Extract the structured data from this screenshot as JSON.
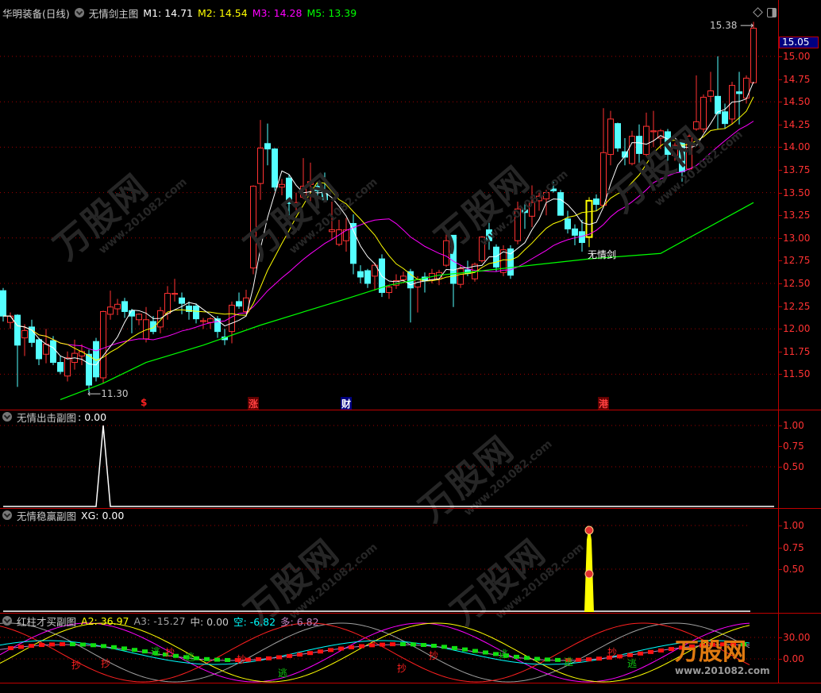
{
  "header": {
    "stock_name": "华明装备(日线)",
    "indicator": "无情剑主图",
    "ma": [
      {
        "label": "M1: 14.71",
        "color": "#ffffff"
      },
      {
        "label": "M2: 14.54",
        "color": "#ffff00"
      },
      {
        "label": "M3: 14.28",
        "color": "#ff00ff"
      },
      {
        "label": "M5: 13.39",
        "color": "#00ff00"
      }
    ]
  },
  "main_axis": [
    "15.00",
    "14.75",
    "14.50",
    "14.25",
    "14.00",
    "13.75",
    "13.50",
    "13.25",
    "13.00",
    "12.75",
    "12.50",
    "12.25",
    "12.00",
    "11.75",
    "11.50"
  ],
  "current_price_box": "15.05",
  "annotations": {
    "high_label": "15.38",
    "low_label": "11.30",
    "signal_label": "无情剑"
  },
  "event_markers": [
    {
      "text": "$",
      "candle": 20,
      "color": "#ff2020",
      "boxed": false
    },
    {
      "text": "涨",
      "candle": 35,
      "color": "#ff4040",
      "boxed": true,
      "bg": "#600000"
    },
    {
      "text": "财",
      "candle": 48,
      "color": "#ffffff",
      "boxed": true,
      "bg": "#000080"
    },
    {
      "text": "港",
      "candle": 84,
      "color": "#ff4040",
      "boxed": true,
      "bg": "#600000"
    }
  ],
  "panel1": {
    "title": "无情出击副图",
    "value": ": 0.00",
    "axis": [
      "1.00",
      "0.75",
      "0.50"
    ]
  },
  "panel2": {
    "title": "无情稳赢副图",
    "value": "XG: 0.00",
    "axis": [
      "1.00",
      "0.75",
      "0.50"
    ]
  },
  "panel3": {
    "title": "红柱才买副图",
    "values": [
      {
        "label": "A2: 36.97",
        "color": "#ffff00"
      },
      {
        "label": "A3: -15.27",
        "color": "#a0a0a0"
      },
      {
        "label": "中: 0.00",
        "color": "#c8c8c8"
      },
      {
        "label": "空: -6.82",
        "color": "#00ffff"
      },
      {
        "label": "多: 6.82",
        "color": "#c080c0"
      }
    ],
    "axis": [
      "30.00",
      "0.00"
    ],
    "buy_text": "抄",
    "sell_text": "逃"
  },
  "watermark": {
    "brand": "万股网",
    "url": "www.201082.com"
  },
  "colors": {
    "up": "#ff3232",
    "down": "#54ffff",
    "grid": "#a00000",
    "axis": "#ff3232",
    "price_box": "#000080",
    "signal": "#ffff00"
  },
  "chart_data": {
    "type": "candlestick",
    "ohlc": [
      [
        12.42,
        12.45,
        12.08,
        12.14
      ],
      [
        12.07,
        12.18,
        12.0,
        12.14
      ],
      [
        12.15,
        12.16,
        11.36,
        11.82
      ],
      [
        11.9,
        12.05,
        11.7,
        11.98
      ],
      [
        12.02,
        12.1,
        11.8,
        11.85
      ],
      [
        11.88,
        11.9,
        11.6,
        11.67
      ],
      [
        11.72,
        12.0,
        11.62,
        11.83
      ],
      [
        11.87,
        11.92,
        11.6,
        11.63
      ],
      [
        11.63,
        11.7,
        11.5,
        11.53
      ],
      [
        11.48,
        11.75,
        11.42,
        11.68
      ],
      [
        11.63,
        11.88,
        11.55,
        11.73
      ],
      [
        11.7,
        11.83,
        11.6,
        11.75
      ],
      [
        11.72,
        11.77,
        11.3,
        11.38
      ],
      [
        11.86,
        11.9,
        11.42,
        11.47
      ],
      [
        11.46,
        12.2,
        11.4,
        12.19
      ],
      [
        12.16,
        12.42,
        12.1,
        12.24
      ],
      [
        12.22,
        12.33,
        12.15,
        12.27
      ],
      [
        12.3,
        12.34,
        12.12,
        12.19
      ],
      [
        12.2,
        12.22,
        11.95,
        12.14
      ],
      [
        12.1,
        12.17,
        12.04,
        12.16
      ],
      [
        11.89,
        12.24,
        11.85,
        12.1
      ],
      [
        12.08,
        12.14,
        11.94,
        11.97
      ],
      [
        12.02,
        12.24,
        11.95,
        12.2
      ],
      [
        12.17,
        12.47,
        12.1,
        12.39
      ],
      [
        12.38,
        12.55,
        12.3,
        12.39
      ],
      [
        12.34,
        12.4,
        12.16,
        12.28
      ],
      [
        12.25,
        12.3,
        12.1,
        12.19
      ],
      [
        12.25,
        12.28,
        12.06,
        12.11
      ],
      [
        12.08,
        12.12,
        12.0,
        12.09
      ],
      [
        12.07,
        12.13,
        12.0,
        12.11
      ],
      [
        12.11,
        12.14,
        11.9,
        11.97
      ],
      [
        11.91,
        12.0,
        11.82,
        11.88
      ],
      [
        11.97,
        12.3,
        11.84,
        12.26
      ],
      [
        12.3,
        12.4,
        12.22,
        12.25
      ],
      [
        12.19,
        12.43,
        12.16,
        12.34
      ],
      [
        12.67,
        13.58,
        12.6,
        13.57
      ],
      [
        13.6,
        14.3,
        13.42,
        13.99
      ],
      [
        14.04,
        14.26,
        13.8,
        13.98
      ],
      [
        13.98,
        13.99,
        13.52,
        13.56
      ],
      [
        13.56,
        13.65,
        13.47,
        13.59
      ],
      [
        13.66,
        13.7,
        13.25,
        13.38
      ],
      [
        13.37,
        13.5,
        13.3,
        13.39
      ],
      [
        13.45,
        13.88,
        13.43,
        13.57
      ],
      [
        13.59,
        13.83,
        13.4,
        13.62
      ],
      [
        13.57,
        13.62,
        13.45,
        13.52
      ],
      [
        13.52,
        13.72,
        13.4,
        13.42
      ],
      [
        13.07,
        13.4,
        12.98,
        13.09
      ],
      [
        12.93,
        13.2,
        12.91,
        13.09
      ],
      [
        12.97,
        13.22,
        12.85,
        13.09
      ],
      [
        13.16,
        13.26,
        12.6,
        12.72
      ],
      [
        12.63,
        12.7,
        12.5,
        12.57
      ],
      [
        12.64,
        12.66,
        12.45,
        12.5
      ],
      [
        12.58,
        12.73,
        12.42,
        12.7
      ],
      [
        12.77,
        12.82,
        12.35,
        12.4
      ],
      [
        12.4,
        12.48,
        12.33,
        12.46
      ],
      [
        12.48,
        12.6,
        12.44,
        12.53
      ],
      [
        12.54,
        12.63,
        12.5,
        12.58
      ],
      [
        12.63,
        12.66,
        12.07,
        12.45
      ],
      [
        12.46,
        12.58,
        12.18,
        12.54
      ],
      [
        12.57,
        12.62,
        12.4,
        12.53
      ],
      [
        12.54,
        12.66,
        12.5,
        12.61
      ],
      [
        12.55,
        12.65,
        12.48,
        12.62
      ],
      [
        12.7,
        13.05,
        12.68,
        12.97
      ],
      [
        13.03,
        13.03,
        12.24,
        12.5
      ],
      [
        12.49,
        12.7,
        12.45,
        12.66
      ],
      [
        12.65,
        12.75,
        12.58,
        12.61
      ],
      [
        12.55,
        12.73,
        12.52,
        12.71
      ],
      [
        12.75,
        13.02,
        12.73,
        13.01
      ],
      [
        13.09,
        13.2,
        12.87,
        12.97
      ],
      [
        12.9,
        12.93,
        12.63,
        12.68
      ],
      [
        12.62,
        12.92,
        12.58,
        12.87
      ],
      [
        12.88,
        12.92,
        12.55,
        12.59
      ],
      [
        12.97,
        13.4,
        12.93,
        13.32
      ],
      [
        13.31,
        13.4,
        13.1,
        13.28
      ],
      [
        13.24,
        13.58,
        13.12,
        13.39
      ],
      [
        13.41,
        13.5,
        13.3,
        13.46
      ],
      [
        13.43,
        13.53,
        13.25,
        13.5
      ],
      [
        13.54,
        13.62,
        13.5,
        13.52
      ],
      [
        13.5,
        13.53,
        13.25,
        13.25
      ],
      [
        13.21,
        13.3,
        13.05,
        13.1
      ],
      [
        13.1,
        13.15,
        12.92,
        13.03
      ],
      [
        13.07,
        13.2,
        12.85,
        12.95
      ],
      [
        13.01,
        13.45,
        12.9,
        13.41
      ],
      [
        13.43,
        13.48,
        13.3,
        13.37
      ],
      [
        13.36,
        14.43,
        13.34,
        13.94
      ],
      [
        13.92,
        14.4,
        13.8,
        14.31
      ],
      [
        14.26,
        14.27,
        13.95,
        13.99
      ],
      [
        13.95,
        14.1,
        13.8,
        13.89
      ],
      [
        13.82,
        14.18,
        13.8,
        14.12
      ],
      [
        14.12,
        14.25,
        13.8,
        13.93
      ],
      [
        13.92,
        14.38,
        13.9,
        14.23
      ],
      [
        14.17,
        14.4,
        14.0,
        14.18
      ],
      [
        14.1,
        14.2,
        13.98,
        14.18
      ],
      [
        14.17,
        14.2,
        13.85,
        13.92
      ],
      [
        13.91,
        14.05,
        13.85,
        14.02
      ],
      [
        14.05,
        14.08,
        13.62,
        13.73
      ],
      [
        13.76,
        14.14,
        13.74,
        14.12
      ],
      [
        14.2,
        14.79,
        14.18,
        14.28
      ],
      [
        14.2,
        14.58,
        14.16,
        14.55
      ],
      [
        14.56,
        14.83,
        14.5,
        14.62
      ],
      [
        14.56,
        15.0,
        14.2,
        14.37
      ],
      [
        14.39,
        14.48,
        14.2,
        14.26
      ],
      [
        14.31,
        14.72,
        14.25,
        14.68
      ],
      [
        14.61,
        14.83,
        14.25,
        14.59
      ],
      [
        14.54,
        14.79,
        14.48,
        14.76
      ],
      [
        14.71,
        15.38,
        14.7,
        15.31
      ]
    ],
    "signal_candle": 82,
    "ma_periods": {
      "M1": 5,
      "M2": 10,
      "M3": 20
    },
    "m5_line": [
      [
        8,
        11.22
      ],
      [
        14,
        11.4
      ],
      [
        20,
        11.63
      ],
      [
        28,
        11.82
      ],
      [
        36,
        12.04
      ],
      [
        43,
        12.21
      ],
      [
        48,
        12.33
      ],
      [
        54,
        12.48
      ],
      [
        61,
        12.59
      ],
      [
        66,
        12.63
      ],
      [
        75,
        12.71
      ],
      [
        82,
        12.77
      ],
      [
        92,
        12.83
      ],
      [
        105,
        13.39
      ]
    ],
    "price_range": [
      11.35,
      15.45
    ],
    "grid_step": 0.5,
    "panel1_signal": {
      "candle": 14,
      "value": 1.0
    },
    "panel2_signal": {
      "candle": 82,
      "value": 1.0
    }
  }
}
